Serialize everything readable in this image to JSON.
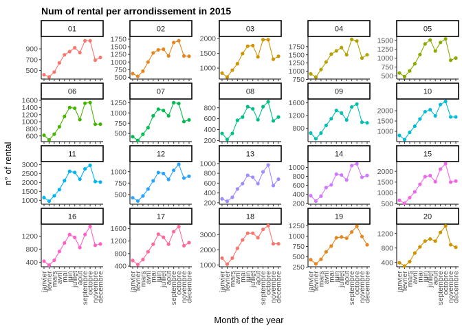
{
  "chart_data": {
    "type": "line",
    "title": "Num of rental per arrondissement in 2015",
    "xlabel": "Month of the year",
    "ylabel": "n° of rental",
    "facets": "wrap by arrondissement, 5 columns, free y scales",
    "grid": false,
    "legend": "none",
    "x": [
      "janvier",
      "février",
      "mars",
      "avril",
      "mai",
      "juin",
      "juillet",
      "août",
      "septembre",
      "octobre",
      "novembre",
      "décembre"
    ],
    "panels": [
      {
        "label": "01",
        "color": "#F8766D",
        "yticks": [
          500,
          700,
          900
        ],
        "ylim": [
          340,
          1130
        ],
        "values": [
          420,
          380,
          470,
          640,
          790,
          850,
          920,
          830,
          1050,
          1050,
          690,
          740
        ]
      },
      {
        "label": "02",
        "color": "#E7851E",
        "yticks": [
          500,
          750,
          1000,
          1250,
          1500,
          1750
        ],
        "ylim": [
          440,
          1840
        ],
        "values": [
          620,
          530,
          700,
          1000,
          1300,
          1400,
          1420,
          1200,
          1640,
          1700,
          1200,
          1190
        ]
      },
      {
        "label": "03",
        "color": "#D09400",
        "yticks": [
          1000,
          1500,
          2000
        ],
        "ylim": [
          630,
          2070
        ],
        "values": [
          830,
          700,
          930,
          1150,
          1490,
          1740,
          1760,
          1380,
          1960,
          1960,
          1300,
          1400
        ]
      },
      {
        "label": "04",
        "color": "#B2A100",
        "yticks": [
          750,
          1000,
          1250,
          1500,
          1750
        ],
        "ylim": [
          760,
          2060
        ],
        "values": [
          920,
          820,
          1050,
          1280,
          1520,
          1620,
          1720,
          1500,
          1970,
          1920,
          1400,
          1500
        ]
      },
      {
        "label": "05",
        "color": "#89AC00",
        "yticks": [
          500,
          750,
          1000,
          1250,
          1500
        ],
        "ylim": [
          410,
          1610
        ],
        "values": [
          580,
          480,
          640,
          840,
          1100,
          1400,
          1510,
          1200,
          1440,
          1540,
          940,
          1000
        ]
      },
      {
        "label": "06",
        "color": "#45B500",
        "yticks": [
          600,
          800,
          1000,
          1200,
          1400,
          1600
        ],
        "ylim": [
          440,
          1640
        ],
        "values": [
          620,
          490,
          650,
          860,
          1150,
          1400,
          1380,
          1060,
          1520,
          1540,
          930,
          930
        ]
      },
      {
        "label": "07",
        "color": "#00BC51",
        "yticks": [
          500,
          750,
          1000,
          1250
        ],
        "ylim": [
          300,
          1340
        ],
        "values": [
          420,
          330,
          480,
          640,
          930,
          1090,
          1060,
          930,
          1250,
          1230,
          790,
          830
        ]
      },
      {
        "label": "08",
        "color": "#00C087",
        "yticks": [
          200,
          400,
          600,
          800
        ],
        "ylim": [
          180,
          960
        ],
        "values": [
          330,
          220,
          330,
          570,
          630,
          820,
          780,
          580,
          820,
          910,
          560,
          630
        ]
      },
      {
        "label": "09",
        "color": "#00C0B2",
        "yticks": [
          800,
          1200,
          1600
        ],
        "ylim": [
          380,
          1720
        ],
        "values": [
          650,
          470,
          650,
          890,
          1100,
          1360,
          1280,
          1060,
          1470,
          1560,
          990,
          970
        ]
      },
      {
        "label": "10",
        "color": "#00BCD6",
        "yticks": [
          1000,
          1500,
          2000
        ],
        "ylim": [
          500,
          2570
        ],
        "values": [
          800,
          600,
          950,
          1250,
          1600,
          1950,
          2050,
          1750,
          2300,
          2450,
          1700,
          1700
        ]
      },
      {
        "label": "11",
        "color": "#00B3F2",
        "yticks": [
          1000,
          1500,
          2000,
          2500,
          3000
        ],
        "ylim": [
          780,
          3170
        ],
        "values": [
          1150,
          950,
          1250,
          1600,
          2100,
          2620,
          2560,
          2180,
          2760,
          2960,
          2050,
          2020
        ]
      },
      {
        "label": "12",
        "color": "#29A3FF",
        "yticks": [
          500,
          750,
          1000
        ],
        "ylim": [
          290,
          1220
        ],
        "values": [
          430,
          360,
          470,
          620,
          800,
          980,
          960,
          830,
          1030,
          1160,
          860,
          900
        ]
      },
      {
        "label": "13",
        "color": "#9C8DFF",
        "yticks": [
          200,
          400,
          600,
          800,
          1000
        ],
        "ylim": [
          170,
          1040
        ],
        "values": [
          280,
          230,
          310,
          480,
          590,
          760,
          720,
          590,
          830,
          970,
          550,
          680
        ]
      },
      {
        "label": "14",
        "color": "#D277FF",
        "yticks": [
          200,
          400,
          600,
          800,
          1000
        ],
        "ylim": [
          180,
          1130
        ],
        "values": [
          370,
          250,
          360,
          550,
          610,
          850,
          830,
          720,
          1040,
          1080,
          780,
          820
        ]
      },
      {
        "label": "15",
        "color": "#F166E8",
        "yticks": [
          500,
          1000,
          1500,
          2000
        ],
        "ylim": [
          480,
          2450
        ],
        "values": [
          660,
          520,
          780,
          1050,
          1400,
          1750,
          1800,
          1520,
          2100,
          2350,
          1500,
          1550
        ]
      },
      {
        "label": "16",
        "color": "#FF61C7",
        "yticks": [
          400,
          800,
          1200
        ],
        "ylim": [
          260,
          1570
        ],
        "values": [
          430,
          310,
          460,
          730,
          990,
          1250,
          1160,
          850,
          1250,
          1500,
          920,
          960
        ]
      },
      {
        "label": "17",
        "color": "#FF689E",
        "yticks": [
          400,
          800,
          1200,
          1600
        ],
        "ylim": [
          380,
          1740
        ],
        "values": [
          580,
          450,
          610,
          860,
          1100,
          1420,
          1320,
          1100,
          1500,
          1660,
          1050,
          1150
        ]
      },
      {
        "label": "18",
        "color": "#F8766D",
        "yticks": [
          1000,
          2000,
          3000
        ],
        "ylim": [
          880,
          3700
        ],
        "values": [
          1450,
          1050,
          1450,
          2100,
          2650,
          3100,
          3100,
          2800,
          3350,
          3600,
          2400,
          2400
        ]
      },
      {
        "label": "19",
        "color": "#E7851E",
        "yticks": [
          250,
          500,
          750,
          1000,
          1250
        ],
        "ylim": [
          260,
          1290
        ],
        "values": [
          430,
          330,
          440,
          620,
          760,
          960,
          980,
          950,
          1100,
          1240,
          990,
          790
        ]
      },
      {
        "label": "20",
        "color": "#D09400",
        "yticks": [
          400,
          800,
          1200
        ],
        "ylim": [
          280,
          1460
        ],
        "values": [
          390,
          300,
          420,
          660,
          830,
          990,
          1050,
          990,
          1230,
          1410,
          890,
          820
        ]
      }
    ]
  }
}
